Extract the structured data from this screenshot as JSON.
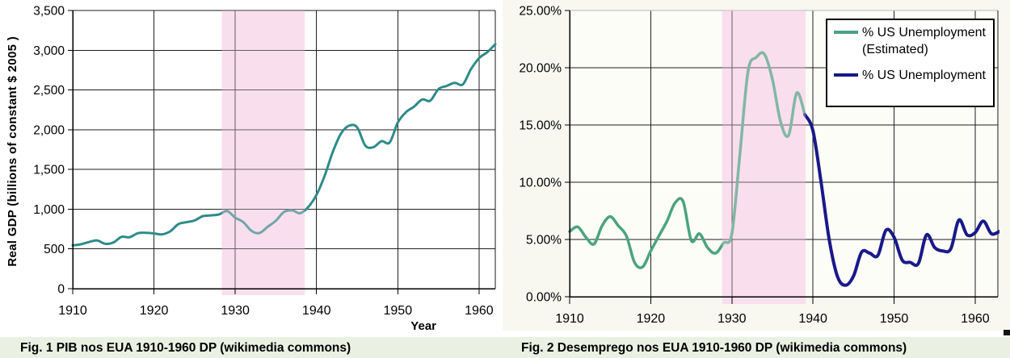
{
  "colors": {
    "gdp_line": "#2e8b88",
    "unemployment_estimated_line": "#4aa381",
    "unemployment_official_line": "#191989",
    "depression_band": "#f9dfee",
    "caption_background": "#eaf0e2",
    "gridline": "#1f1f1f",
    "fig2_top_border": "#b9b9b9",
    "fig2_outer_background": "#f8f8f1"
  },
  "chart_data": [
    {
      "type": "line",
      "title": "",
      "xlabel": "Year",
      "ylabel": "Real GDP (billions of constant $ 2005 )",
      "caption": "Fig. 1 PIB nos EUA 1910-1960 DP (wikimedia commons)",
      "xlim": [
        1910,
        1962
      ],
      "ylim": [
        0,
        3500
      ],
      "grid": true,
      "legend_position": "none",
      "x_ticks": [
        1910,
        1920,
        1930,
        1940,
        1950,
        1960
      ],
      "x_tick_labels": [
        "1910",
        "1920",
        "1930",
        "1940",
        "1950",
        "1960"
      ],
      "y_ticks": [
        0,
        500,
        1000,
        1500,
        2000,
        2500,
        3000,
        3500
      ],
      "y_tick_labels": [
        "0",
        "500",
        "1,000",
        "1,500",
        "2,000",
        "2,500",
        "3,000",
        "3,500"
      ],
      "band": {
        "x0": 1928.35,
        "x1": 1938.55,
        "color": "#f9dfee",
        "meaning": "Great Depression period"
      },
      "series": [
        {
          "id": "real-gdp-line",
          "name": "Real GDP",
          "color": "#2e8b88",
          "width": 3,
          "x_start": 1910,
          "values": [
            545,
            558,
            586,
            607,
            564,
            580,
            651,
            647,
            697,
            703,
            695,
            683,
            721,
            812,
            836,
            858,
            912,
            922,
            934,
            977,
            893,
            836,
            727,
            701,
            779,
            855,
            965,
            985,
            950,
            1030,
            1180,
            1420,
            1720,
            1950,
            2050,
            2030,
            1800,
            1780,
            1855,
            1840,
            2090,
            2220,
            2290,
            2380,
            2365,
            2510,
            2550,
            2590,
            2570,
            2760,
            2900,
            2975,
            3075
          ]
        }
      ]
    },
    {
      "type": "line",
      "title": "",
      "xlabel": "",
      "ylabel": "",
      "caption": "Fig. 2 Desemprego nos EUA 1910-1960 DP (wikimedia commons)",
      "xlim": [
        1910,
        1962.8
      ],
      "ylim": [
        0,
        25
      ],
      "grid": true,
      "legend_position": "top-right",
      "x_ticks": [
        1910,
        1920,
        1930,
        1940,
        1950,
        1960
      ],
      "x_tick_labels": [
        "1910",
        "1920",
        "1930",
        "1940",
        "1950",
        "1960"
      ],
      "y_ticks": [
        0,
        5,
        10,
        15,
        20,
        25
      ],
      "y_tick_labels": [
        "0.00%",
        "5.00%",
        "10.00%",
        "15.00%",
        "20.00%",
        "25.00%"
      ],
      "band": {
        "x0": 1928.8,
        "x1": 1939.1,
        "color": "#f9dfee",
        "meaning": "Great Depression period"
      },
      "series": [
        {
          "id": "unemployment-estimated-line",
          "name": "% US Unemployment (Estimated)",
          "color": "#4aa381",
          "width": 3.5,
          "x_start": 1910,
          "values": [
            5.7,
            6.1,
            5.2,
            4.6,
            6.2,
            7.0,
            6.2,
            5.3,
            3.0,
            2.6,
            4.0,
            5.3,
            6.6,
            8.2,
            8.3,
            4.9,
            5.5,
            4.3,
            3.8,
            4.7,
            5.5,
            12.5,
            19.7,
            20.9,
            21.2,
            19.0,
            15.3,
            14.1,
            17.8,
            15.9
          ]
        },
        {
          "id": "unemployment-official-line",
          "name": "% US Unemployment",
          "color": "#191989",
          "width": 4,
          "x_start": 1939,
          "values": [
            15.9,
            14.5,
            10.0,
            5.0,
            1.8,
            1.0,
            1.8,
            3.9,
            3.8,
            3.6,
            5.8,
            5.2,
            3.2,
            3.0,
            2.9,
            5.4,
            4.3,
            4.0,
            4.2,
            6.7,
            5.4,
            5.6,
            6.6,
            5.5,
            5.7
          ]
        }
      ],
      "legend_entries": [
        {
          "series": 0,
          "label_lines": [
            "% US Unemployment",
            "(Estimated)"
          ]
        },
        {
          "series": 1,
          "label_lines": [
            "% US Unemployment"
          ]
        }
      ]
    }
  ]
}
